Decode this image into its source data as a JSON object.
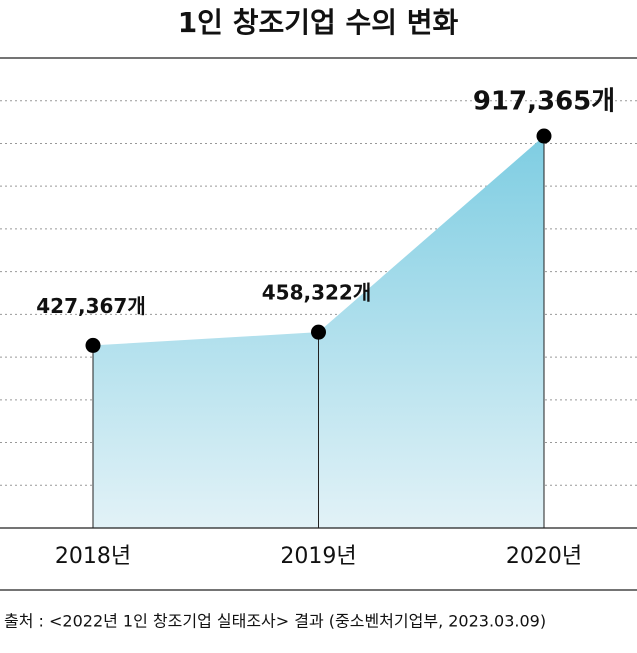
{
  "chart_data": {
    "type": "area",
    "title": "1인 창조기업 수의 변화",
    "categories": [
      "2018년",
      "2019년",
      "2020년"
    ],
    "series": [
      {
        "values": [
          427367,
          458322,
          917365
        ],
        "value_labels": [
          "427,367개",
          "458,322개",
          "917,365개"
        ],
        "color": "#7ecde2"
      }
    ],
    "ylim": [
      0,
      1100000
    ],
    "yticks": [
      100000,
      200000,
      300000,
      400000,
      500000,
      600000,
      700000,
      800000,
      900000,
      1000000
    ],
    "grid": true,
    "source": "출처 : <2022년 1인 창조기업 실태조사> 결과 (중소벤처기업부, 2023.03.09)"
  }
}
